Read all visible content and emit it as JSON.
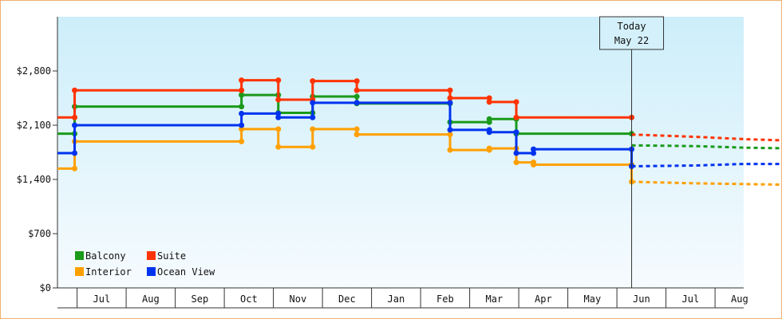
{
  "chart_data": {
    "type": "line",
    "step": true,
    "x_unit": "month-index (0 = Jun 1, integers = first of month)",
    "ylim": [
      0,
      3500
    ],
    "yticks": [
      0,
      700,
      1400,
      2100,
      2800
    ],
    "ytick_labels": [
      "$0",
      "$700",
      "$1,400",
      "$2,100",
      "$2,800"
    ],
    "month_labels": [
      "Jul",
      "Aug",
      "Sep",
      "Oct",
      "Nov",
      "Dec",
      "Jan",
      "Feb",
      "Mar",
      "Apr",
      "May",
      "Jun",
      "Jul",
      "Aug"
    ],
    "grid": false,
    "legend_position": "bottom-left",
    "today": {
      "x": 11.7,
      "label_line1": "Today",
      "label_line2": "May 22"
    },
    "series": [
      {
        "name": "Balcony",
        "color": "#1a9a1a",
        "points": [
          [
            0,
            1990
          ],
          [
            0.35,
            1990
          ],
          [
            0.35,
            2340
          ],
          [
            3.75,
            2340
          ],
          [
            3.75,
            2490
          ],
          [
            4.5,
            2490
          ],
          [
            4.5,
            2260
          ],
          [
            5.2,
            2260
          ],
          [
            5.2,
            2470
          ],
          [
            6.1,
            2470
          ],
          [
            6.1,
            2380
          ],
          [
            8.0,
            2380
          ],
          [
            8.0,
            2140
          ],
          [
            8.8,
            2140
          ],
          [
            8.8,
            2180
          ],
          [
            9.35,
            2180
          ],
          [
            9.35,
            1990
          ],
          [
            11.7,
            1990
          ]
        ],
        "forecast": [
          [
            11.7,
            1840
          ],
          [
            13.0,
            1830
          ],
          [
            14.0,
            1810
          ],
          [
            15.0,
            1800
          ]
        ]
      },
      {
        "name": "Suite",
        "color": "#ff3300",
        "points": [
          [
            0,
            2200
          ],
          [
            0.35,
            2200
          ],
          [
            0.35,
            2550
          ],
          [
            3.75,
            2550
          ],
          [
            3.75,
            2680
          ],
          [
            4.5,
            2680
          ],
          [
            4.5,
            2430
          ],
          [
            5.2,
            2430
          ],
          [
            5.2,
            2670
          ],
          [
            6.1,
            2670
          ],
          [
            6.1,
            2550
          ],
          [
            8.0,
            2550
          ],
          [
            8.0,
            2450
          ],
          [
            8.8,
            2450
          ],
          [
            8.8,
            2400
          ],
          [
            9.35,
            2400
          ],
          [
            9.35,
            2200
          ],
          [
            11.7,
            2200
          ]
        ],
        "forecast": [
          [
            11.7,
            1980
          ],
          [
            13.0,
            1950
          ],
          [
            14.0,
            1920
          ],
          [
            15.0,
            1900
          ]
        ]
      },
      {
        "name": "Interior",
        "color": "#ffa000",
        "points": [
          [
            0,
            1540
          ],
          [
            0.35,
            1540
          ],
          [
            0.35,
            1890
          ],
          [
            3.75,
            1890
          ],
          [
            3.75,
            2050
          ],
          [
            4.5,
            2050
          ],
          [
            4.5,
            1820
          ],
          [
            5.2,
            1820
          ],
          [
            5.2,
            2050
          ],
          [
            6.1,
            2050
          ],
          [
            6.1,
            1980
          ],
          [
            8.0,
            1980
          ],
          [
            8.0,
            1780
          ],
          [
            8.8,
            1780
          ],
          [
            8.8,
            1800
          ],
          [
            9.35,
            1800
          ],
          [
            9.35,
            1620
          ],
          [
            9.7,
            1620
          ],
          [
            9.7,
            1590
          ],
          [
            11.7,
            1590
          ],
          [
            11.7,
            1370
          ]
        ],
        "forecast": [
          [
            11.7,
            1370
          ],
          [
            13.0,
            1350
          ],
          [
            14.0,
            1340
          ],
          [
            15.0,
            1330
          ]
        ]
      },
      {
        "name": "Ocean View",
        "color": "#0033ee",
        "points": [
          [
            0,
            1740
          ],
          [
            0.35,
            1740
          ],
          [
            0.35,
            2100
          ],
          [
            3.75,
            2100
          ],
          [
            3.75,
            2250
          ],
          [
            4.5,
            2250
          ],
          [
            4.5,
            2200
          ],
          [
            5.2,
            2200
          ],
          [
            5.2,
            2390
          ],
          [
            6.1,
            2390
          ],
          [
            6.1,
            2390
          ],
          [
            8.0,
            2390
          ],
          [
            8.0,
            2040
          ],
          [
            8.8,
            2040
          ],
          [
            8.8,
            2010
          ],
          [
            9.35,
            2010
          ],
          [
            9.35,
            1740
          ],
          [
            9.7,
            1740
          ],
          [
            9.7,
            1790
          ],
          [
            11.7,
            1790
          ],
          [
            11.7,
            1570
          ]
        ],
        "forecast": [
          [
            11.7,
            1570
          ],
          [
            13.0,
            1580
          ],
          [
            14.0,
            1600
          ],
          [
            15.0,
            1600
          ]
        ]
      }
    ]
  }
}
